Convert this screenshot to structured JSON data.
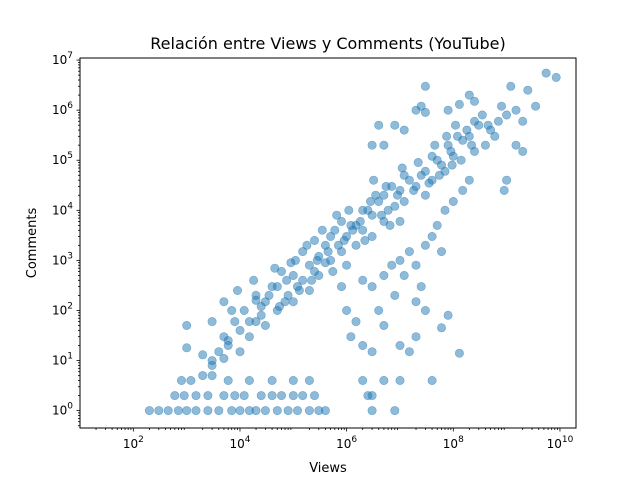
{
  "chart_data": {
    "type": "scatter",
    "title": "Relación entre Views y Comments (YouTube)",
    "xlabel": "Views",
    "ylabel": "Comments",
    "xscale": "log",
    "yscale": "log",
    "xlim": [
      10,
      20000000000
    ],
    "ylim": [
      0.45,
      11000000
    ],
    "xticks": [
      {
        "value": 100,
        "mantissa": "10",
        "exp": "2"
      },
      {
        "value": 10000,
        "mantissa": "10",
        "exp": "4"
      },
      {
        "value": 1000000,
        "mantissa": "10",
        "exp": "6"
      },
      {
        "value": 100000000,
        "mantissa": "10",
        "exp": "8"
      },
      {
        "value": 10000000000,
        "mantissa": "10",
        "exp": "10"
      }
    ],
    "yticks": [
      {
        "value": 1,
        "mantissa": "10",
        "exp": "0"
      },
      {
        "value": 10,
        "mantissa": "10",
        "exp": "1"
      },
      {
        "value": 100,
        "mantissa": "10",
        "exp": "2"
      },
      {
        "value": 1000,
        "mantissa": "10",
        "exp": "3"
      },
      {
        "value": 10000,
        "mantissa": "10",
        "exp": "4"
      },
      {
        "value": 100000,
        "mantissa": "10",
        "exp": "5"
      },
      {
        "value": 1000000,
        "mantissa": "10",
        "exp": "6"
      },
      {
        "value": 10000000,
        "mantissa": "10",
        "exp": "7"
      }
    ],
    "grid": false,
    "legend": "none",
    "marker_color": "#1f77b4",
    "marker_alpha": 0.5,
    "series": [
      {
        "points": [
          [
            200,
            1
          ],
          [
            300,
            1
          ],
          [
            450,
            1
          ],
          [
            700,
            1
          ],
          [
            1000,
            1
          ],
          [
            1500,
            1
          ],
          [
            2500,
            1
          ],
          [
            4000,
            1
          ],
          [
            7000,
            1
          ],
          [
            10000,
            1
          ],
          [
            15000,
            1
          ],
          [
            20000,
            1
          ],
          [
            30000,
            1
          ],
          [
            50000,
            1
          ],
          [
            80000,
            1
          ],
          [
            120000,
            1
          ],
          [
            200000,
            1
          ],
          [
            300000,
            1
          ],
          [
            400000,
            1
          ],
          [
            3000000,
            1
          ],
          [
            8000000,
            1
          ],
          [
            600,
            2
          ],
          [
            900,
            2
          ],
          [
            1500,
            2
          ],
          [
            2500,
            2
          ],
          [
            5000,
            2
          ],
          [
            8000,
            2
          ],
          [
            12000,
            2
          ],
          [
            25000,
            2
          ],
          [
            40000,
            2
          ],
          [
            60000,
            2
          ],
          [
            100000,
            2
          ],
          [
            150000,
            2
          ],
          [
            250000,
            2
          ],
          [
            2500000,
            2
          ],
          [
            3000000,
            2
          ],
          [
            800,
            4
          ],
          [
            1200,
            4
          ],
          [
            2000,
            5
          ],
          [
            3000,
            5
          ],
          [
            6000,
            4
          ],
          [
            15000,
            4
          ],
          [
            40000,
            4
          ],
          [
            100000,
            4
          ],
          [
            200000,
            4
          ],
          [
            2000000,
            4
          ],
          [
            5000000,
            4
          ],
          [
            10000000,
            4
          ],
          [
            40000000,
            4
          ],
          [
            1000,
            50
          ],
          [
            1000,
            18
          ],
          [
            3000,
            8
          ],
          [
            2000,
            13
          ],
          [
            5000,
            11
          ],
          [
            4000,
            15
          ],
          [
            6000,
            25
          ],
          [
            20000,
            160
          ],
          [
            25000,
            120
          ],
          [
            2000000,
            20
          ],
          [
            3000000,
            15
          ],
          [
            15000000,
            15
          ],
          [
            20000000,
            30
          ],
          [
            60000000,
            45
          ],
          [
            80000000,
            80
          ],
          [
            130000000,
            14
          ],
          [
            3000,
            10
          ],
          [
            6000,
            20
          ],
          [
            10000,
            15
          ],
          [
            10000,
            40
          ],
          [
            15000,
            30
          ],
          [
            20000,
            60
          ],
          [
            30000,
            50
          ],
          [
            30000,
            150
          ],
          [
            50000,
            100
          ],
          [
            50000,
            300
          ],
          [
            80000,
            200
          ],
          [
            100000,
            500
          ],
          [
            100000,
            150
          ],
          [
            150000,
            400
          ],
          [
            200000,
            800
          ],
          [
            200000,
            250
          ],
          [
            300000,
            1200
          ],
          [
            300000,
            500
          ],
          [
            500000,
            1000
          ],
          [
            500000,
            3000
          ],
          [
            700000,
            2000
          ],
          [
            1000000,
            3000
          ],
          [
            1000000,
            800
          ],
          [
            1500000,
            5000
          ],
          [
            2000000,
            4000
          ],
          [
            2000000,
            10000
          ],
          [
            3000000,
            8000
          ],
          [
            4000000,
            15000
          ],
          [
            5000000,
            6000
          ],
          [
            5000000,
            20000
          ],
          [
            8000000,
            12000
          ],
          [
            10000000,
            25000
          ],
          [
            10000000,
            6000
          ],
          [
            15000000,
            40000
          ],
          [
            20000000,
            30000
          ],
          [
            30000000,
            60000
          ],
          [
            40000000,
            40000
          ],
          [
            50000000,
            100000
          ],
          [
            60000000,
            80000
          ],
          [
            80000000,
            200000
          ],
          [
            100000000,
            120000
          ],
          [
            150000000,
            250000
          ],
          [
            200000000,
            300000
          ],
          [
            300000000,
            500000
          ],
          [
            400000000,
            200000
          ],
          [
            500000000,
            400000
          ],
          [
            700000000,
            600000
          ],
          [
            1000000000,
            800000
          ],
          [
            5000,
            30
          ],
          [
            8000,
            60
          ],
          [
            12000,
            100
          ],
          [
            20000,
            200
          ],
          [
            25000,
            80
          ],
          [
            40000,
            300
          ],
          [
            60000,
            600
          ],
          [
            70000,
            150
          ],
          [
            90000,
            900
          ],
          [
            120000,
            300
          ],
          [
            150000,
            1500
          ],
          [
            250000,
            600
          ],
          [
            250000,
            2500
          ],
          [
            400000,
            2000
          ],
          [
            400000,
            900
          ],
          [
            600000,
            4000
          ],
          [
            800000,
            1500
          ],
          [
            800000,
            6000
          ],
          [
            1200000,
            5000
          ],
          [
            1500000,
            2000
          ],
          [
            2500000,
            10000
          ],
          [
            3000000,
            3000
          ],
          [
            3500000,
            20000
          ],
          [
            6000000,
            10000
          ],
          [
            7000000,
            30000
          ],
          [
            12000000,
            15000
          ],
          [
            12000000,
            50000
          ],
          [
            25000000,
            50000
          ],
          [
            30000000,
            20000
          ],
          [
            40000000,
            120000
          ],
          [
            70000000,
            60000
          ],
          [
            90000000,
            150000
          ],
          [
            120000000,
            300000
          ],
          [
            250000000,
            150000
          ],
          [
            250000000,
            600000
          ],
          [
            600000000,
            300000
          ],
          [
            800000000,
            1200000
          ],
          [
            3000,
            60
          ],
          [
            5000,
            150
          ],
          [
            7000,
            100
          ],
          [
            9000,
            250
          ],
          [
            15000,
            60
          ],
          [
            18000,
            400
          ],
          [
            35000,
            200
          ],
          [
            45000,
            700
          ],
          [
            55000,
            120
          ],
          [
            75000,
            400
          ],
          [
            110000,
            1000
          ],
          [
            130000,
            250
          ],
          [
            180000,
            2000
          ],
          [
            220000,
            400
          ],
          [
            280000,
            1000
          ],
          [
            350000,
            4000
          ],
          [
            450000,
            1500
          ],
          [
            550000,
            600
          ],
          [
            650000,
            8000
          ],
          [
            900000,
            2500
          ],
          [
            1100000,
            10000
          ],
          [
            1300000,
            4000
          ],
          [
            1800000,
            6000
          ],
          [
            2200000,
            2500
          ],
          [
            2800000,
            15000
          ],
          [
            3200000,
            40000
          ],
          [
            4500000,
            8000
          ],
          [
            5500000,
            30000
          ],
          [
            6500000,
            5000
          ],
          [
            9000000,
            20000
          ],
          [
            11000000,
            70000
          ],
          [
            18000000,
            25000
          ],
          [
            22000000,
            90000
          ],
          [
            35000000,
            35000
          ],
          [
            45000000,
            200000
          ],
          [
            55000000,
            50000
          ],
          [
            75000000,
            300000
          ],
          [
            95000000,
            80000
          ],
          [
            110000000,
            500000
          ],
          [
            140000000,
            100000
          ],
          [
            180000000,
            400000
          ],
          [
            220000000,
            200000
          ],
          [
            350000000,
            800000
          ],
          [
            450000000,
            500000
          ],
          [
            3000000,
            200000
          ],
          [
            5000000,
            200000
          ],
          [
            8000000,
            500000
          ],
          [
            12000000,
            400000
          ],
          [
            4000000,
            500000
          ],
          [
            30000000,
            900000
          ],
          [
            20000000,
            1000000
          ],
          [
            25000000,
            1200000
          ],
          [
            200000000,
            2000000
          ],
          [
            130000000,
            1300000
          ],
          [
            30000000,
            3000000
          ],
          [
            250000000,
            1500000
          ],
          [
            80000000,
            1000000
          ],
          [
            1500000000,
            200000
          ],
          [
            2000000000,
            150000
          ],
          [
            1000000000,
            40000
          ],
          [
            900000000,
            25000
          ],
          [
            1200000000,
            3000000
          ],
          [
            1500000000,
            1000000
          ],
          [
            5500000000,
            5500000
          ],
          [
            8500000000,
            4500000
          ],
          [
            2500000000,
            2500000
          ],
          [
            3500000000,
            1200000
          ],
          [
            2000000000,
            600000
          ],
          [
            2000000,
            400
          ],
          [
            3000000,
            300
          ],
          [
            5000000,
            500
          ],
          [
            7000000,
            800
          ],
          [
            10000000,
            1000
          ],
          [
            15000000,
            1500
          ],
          [
            20000000,
            800
          ],
          [
            30000000,
            2000
          ],
          [
            40000000,
            3000
          ],
          [
            50000000,
            5000
          ],
          [
            70000000,
            10000
          ],
          [
            100000000,
            15000
          ],
          [
            150000000,
            25000
          ],
          [
            200000000,
            40000
          ],
          [
            8000000,
            200
          ],
          [
            12000000,
            500
          ],
          [
            1000000,
            100
          ],
          [
            1500000,
            60
          ],
          [
            20000000,
            150
          ],
          [
            25000000,
            300
          ],
          [
            60000000,
            1500
          ],
          [
            10000000,
            20
          ],
          [
            5000000,
            50
          ],
          [
            1200000,
            30
          ],
          [
            800000,
            300
          ],
          [
            4000000,
            100
          ],
          [
            30000000,
            100
          ]
        ]
      }
    ]
  }
}
